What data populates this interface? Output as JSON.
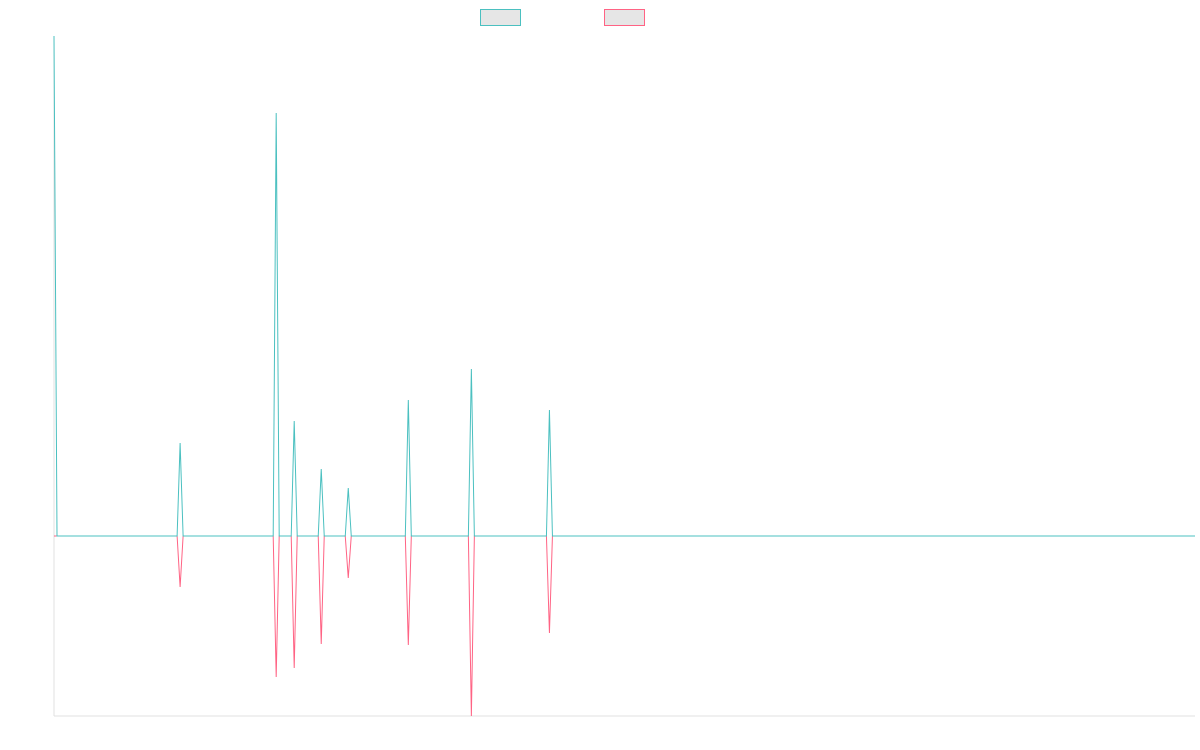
{
  "chart_data": {
    "type": "line",
    "x": [
      0,
      1,
      41,
      42,
      43,
      73,
      74,
      75,
      79,
      80,
      81,
      88,
      89,
      90,
      97,
      98,
      99,
      117,
      118,
      119,
      138,
      139,
      140,
      164,
      165,
      166,
      380
    ],
    "series": [
      {
        "color": "#ff6384",
        "values": [
          0,
          0,
          0,
          -10.2,
          0,
          0,
          -28.2,
          0,
          0,
          -26.4,
          0,
          0,
          -21.6,
          0,
          0,
          -8.4,
          0,
          0,
          -21.8,
          0,
          0,
          -36,
          0,
          0,
          -19.4,
          0,
          0
        ]
      },
      {
        "color": "#4bc0c0",
        "values": [
          100,
          0,
          0,
          18.6,
          0,
          0,
          84.6,
          0,
          0,
          23,
          0,
          0,
          13.4,
          0,
          0,
          9.6,
          0,
          0,
          27.2,
          0,
          0,
          33.4,
          0,
          0,
          25.2,
          0,
          0
        ]
      }
    ],
    "xlim": [
      0,
      380
    ],
    "ylim": [
      -36,
      100
    ]
  }
}
